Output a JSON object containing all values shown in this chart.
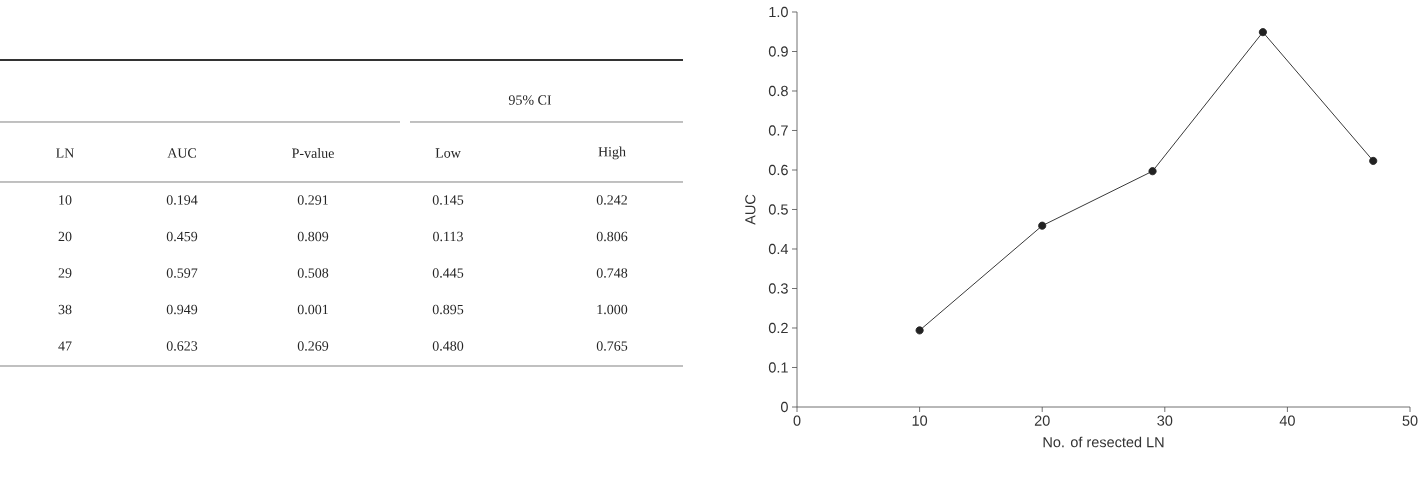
{
  "chart_data": [
    {
      "type": "other",
      "annotations": [
        "95% CI",
        "LN",
        "AUC",
        "P-value",
        "Low",
        "High",
        "10",
        "0.194",
        "0.291",
        "0.145",
        "0.242",
        "20",
        "0.459",
        "0.809",
        "0.113",
        "0.806",
        "29",
        "0.597",
        "0.508",
        "0.445",
        "0.748",
        "38",
        "0.949",
        "0.001",
        "0.895",
        "1.000",
        "47",
        "0.623",
        "0.269",
        "0.480",
        "0.765"
      ]
    },
    {
      "type": "line",
      "xlabel": "No. of resected LN",
      "ylabel": "AUC",
      "x": [
        10,
        20,
        29,
        38,
        47
      ],
      "values": [
        0.194,
        0.459,
        0.597,
        0.949,
        0.623
      ],
      "color": "#222222",
      "marker": "circle",
      "xlim": [
        0,
        50
      ],
      "ylim": [
        0,
        1
      ],
      "xticks": [
        0,
        10,
        20,
        30,
        40,
        50
      ],
      "yticks": [
        0,
        0.1,
        0.2,
        0.3,
        0.4,
        0.5,
        0.6,
        0.7,
        0.8,
        0.9,
        {
          "value": 1,
          "label": "1.0"
        }
      ]
    }
  ]
}
